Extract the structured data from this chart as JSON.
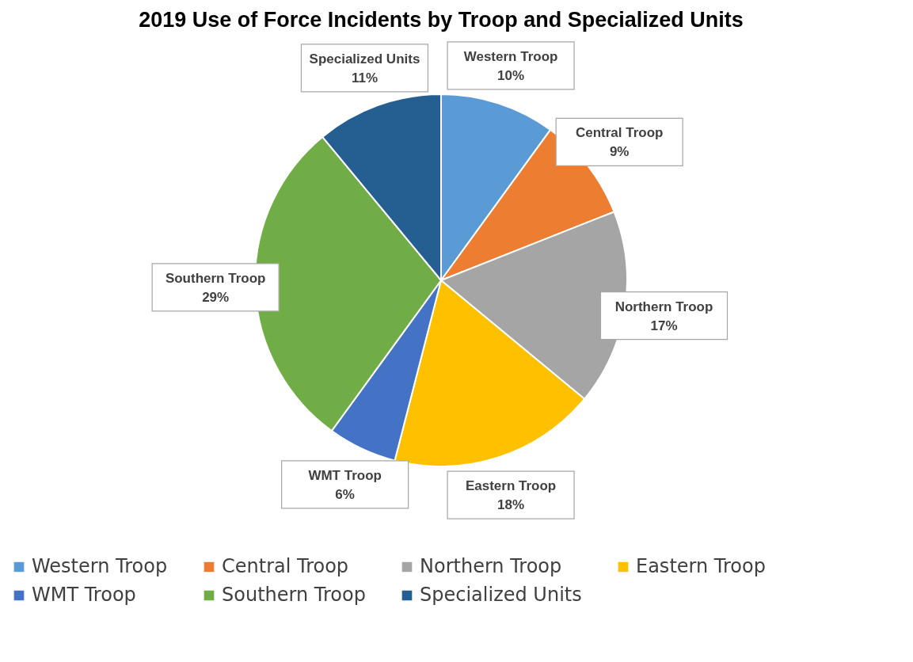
{
  "chart_data": {
    "type": "pie",
    "title": "2019 Use of Force Incidents by Troop and Specialized Units",
    "categories": [
      "Western Troop",
      "Central Troop",
      "Northern Troop",
      "Eastern Troop",
      "WMT Troop",
      "Southern Troop",
      "Specialized Units"
    ],
    "values": [
      10,
      9,
      17,
      18,
      6,
      29,
      11
    ],
    "colors": [
      "#5b9bd5",
      "#ed7d31",
      "#a5a5a5",
      "#ffc000",
      "#4472c4",
      "#70ad47",
      "#255e91"
    ],
    "value_labels": [
      "10%",
      "9%",
      "17%",
      "18%",
      "6%",
      "29%",
      "11%"
    ],
    "legend": "bottom"
  }
}
